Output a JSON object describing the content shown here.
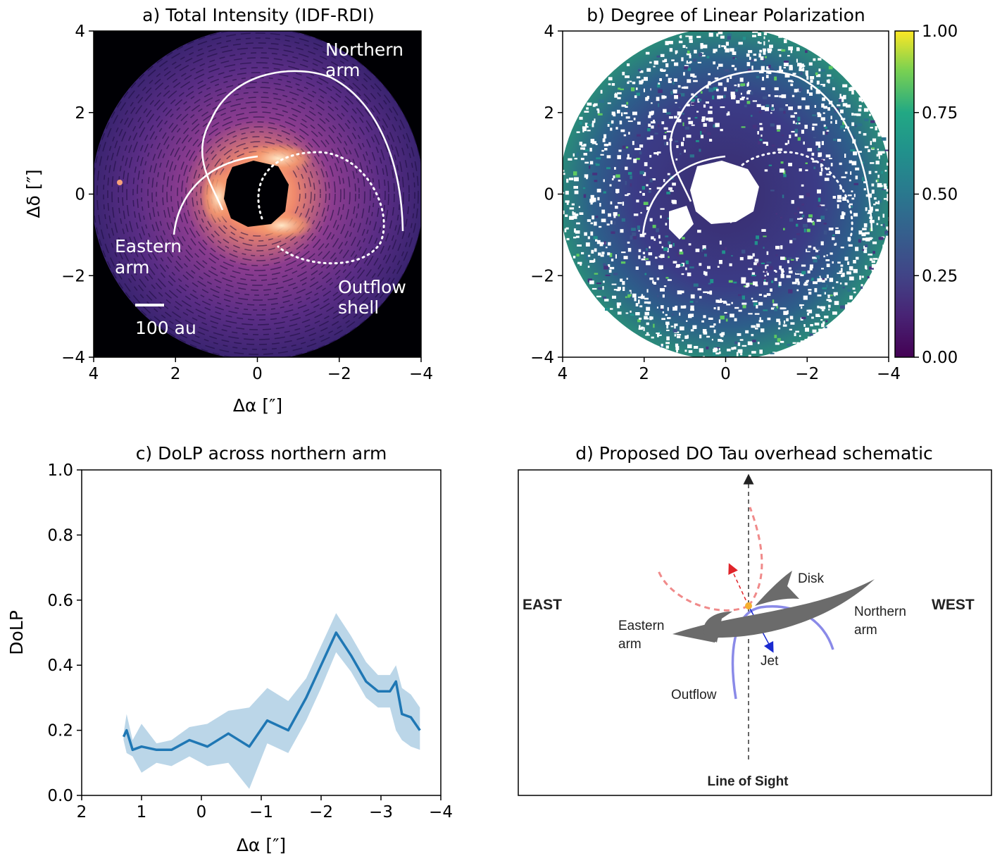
{
  "panels": {
    "a": {
      "title": "a) Total Intensity (IDF-RDI)",
      "xlabel": "Δα [″]",
      "ylabel": "Δδ [″]",
      "x_ticks": [
        "4",
        "2",
        "0",
        "−2",
        "−4"
      ],
      "y_ticks": [
        "4",
        "2",
        "0",
        "−2",
        "−4"
      ],
      "annotations": {
        "northern_arm_1": "Northern",
        "northern_arm_2": "arm",
        "eastern_arm_1": "Eastern",
        "eastern_arm_2": "arm",
        "outflow_shell_1": "Outflow",
        "outflow_shell_2": "shell",
        "scalebar": "100 au"
      },
      "colormap": "magma"
    },
    "b": {
      "title": "b) Degree of Linear Polarization",
      "x_ticks": [
        "4",
        "2",
        "0",
        "−2",
        "−4"
      ],
      "y_ticks": [
        "4",
        "2",
        "0",
        "−2",
        "−4"
      ],
      "colorbar_ticks": [
        "1.00",
        "0.75",
        "0.50",
        "0.25",
        "0.00"
      ],
      "colormap": "viridis"
    },
    "d": {
      "title": "d) Proposed DO Tau overhead schematic",
      "labels": {
        "east": "EAST",
        "west": "WEST",
        "disk": "Disk",
        "northern_1": "Northern",
        "northern_2": "arm",
        "eastern_1": "Eastern",
        "eastern_2": "arm",
        "jet": "Jet",
        "outflow": "Outflow",
        "los": "Line of Sight"
      }
    }
  },
  "chart_data": [
    {
      "type": "line",
      "title": "c) DoLP across northern arm",
      "xlabel": "Δα [″]",
      "ylabel": "DoLP",
      "xlim": [
        2,
        -4
      ],
      "ylim": [
        0.0,
        1.0
      ],
      "x_ticks": [
        "2",
        "1",
        "0",
        "−1",
        "−2",
        "−3",
        "−4"
      ],
      "y_ticks": [
        "0.0",
        "0.2",
        "0.4",
        "0.6",
        "0.8",
        "1.0"
      ],
      "color": "#1f77b4",
      "x": [
        1.3,
        1.25,
        1.15,
        1.0,
        0.75,
        0.5,
        0.2,
        -0.1,
        -0.45,
        -0.8,
        -1.1,
        -1.45,
        -1.75,
        -2.0,
        -2.25,
        -2.5,
        -2.75,
        -2.95,
        -3.15,
        -3.25,
        -3.35,
        -3.5,
        -3.65
      ],
      "values": [
        0.18,
        0.2,
        0.14,
        0.15,
        0.14,
        0.14,
        0.17,
        0.15,
        0.19,
        0.15,
        0.23,
        0.2,
        0.3,
        0.4,
        0.5,
        0.43,
        0.35,
        0.32,
        0.32,
        0.35,
        0.25,
        0.24,
        0.2
      ],
      "lower": [
        0.17,
        0.13,
        0.12,
        0.07,
        0.1,
        0.09,
        0.12,
        0.09,
        0.1,
        0.02,
        0.16,
        0.13,
        0.23,
        0.33,
        0.44,
        0.38,
        0.3,
        0.27,
        0.27,
        0.2,
        0.17,
        0.15,
        0.14
      ],
      "upper": [
        0.19,
        0.25,
        0.17,
        0.22,
        0.16,
        0.17,
        0.21,
        0.22,
        0.26,
        0.27,
        0.33,
        0.29,
        0.36,
        0.46,
        0.56,
        0.49,
        0.41,
        0.37,
        0.37,
        0.4,
        0.33,
        0.31,
        0.27
      ]
    }
  ]
}
